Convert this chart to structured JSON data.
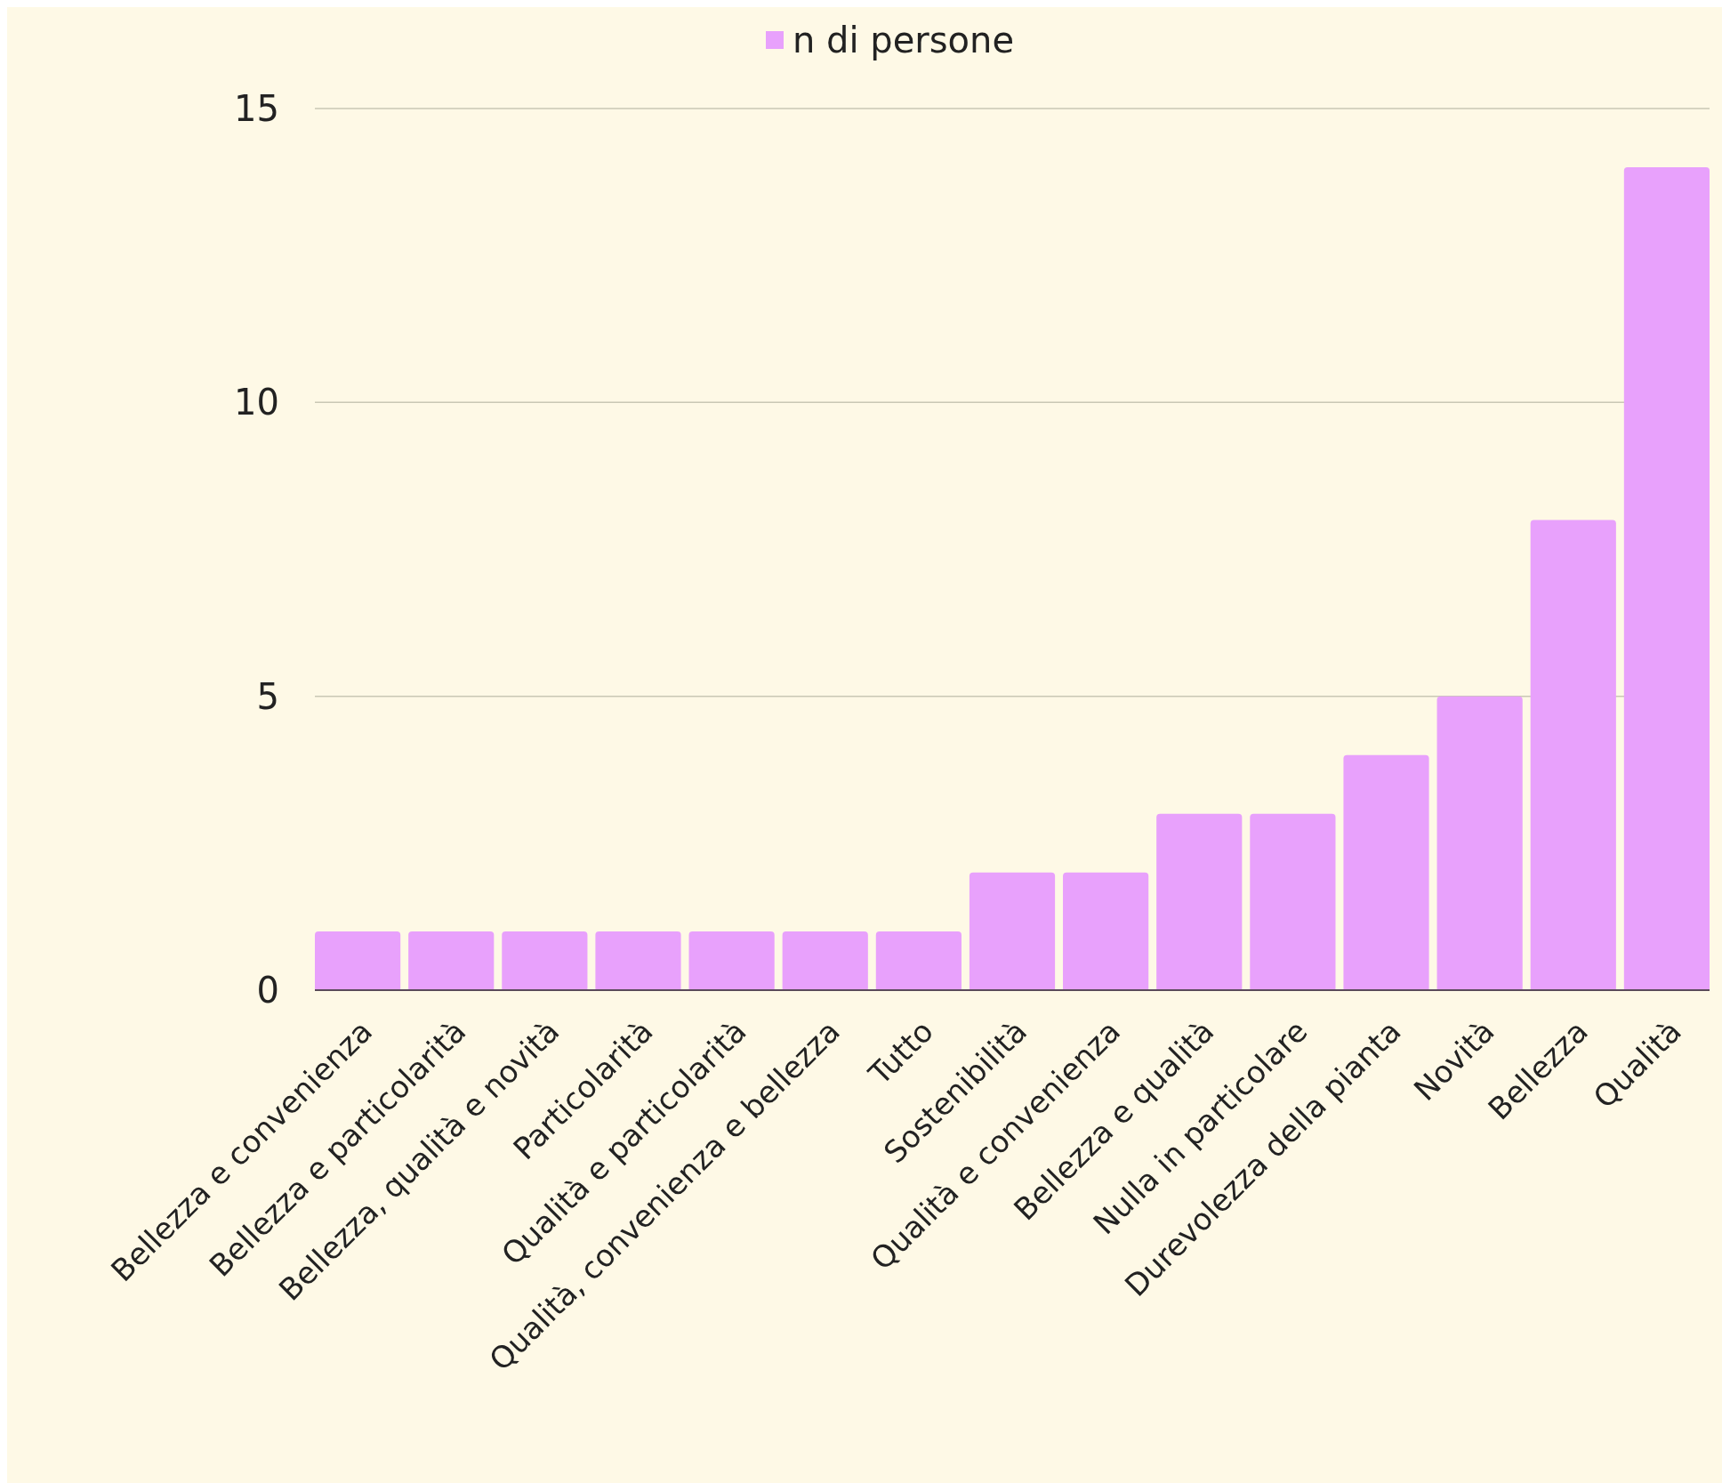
{
  "chart_data": {
    "type": "bar",
    "categories": [
      "Bellezza e convenienza",
      "Bellezza e particolarità",
      "Bellezza, qualità e novità",
      "Particolarità",
      "Qualità e particolarità",
      "Qualità, convenienza e bellezza",
      "Tutto",
      "Sostenibilità",
      "Qualità e convenienza",
      "Bellezza e qualità",
      "Nulla in particolare",
      "Durevolezza della pianta",
      "Novità",
      "Bellezza",
      "Qualità"
    ],
    "series": [
      {
        "name": "n di persone",
        "color": "#e8a1fc",
        "values": [
          1,
          1,
          1,
          1,
          1,
          1,
          1,
          2,
          2,
          3,
          3,
          4,
          5,
          8,
          14
        ]
      }
    ],
    "ylim": [
      0,
      15
    ],
    "yticks": [
      0,
      5,
      10,
      15
    ],
    "grid": "y",
    "legend": "top"
  }
}
